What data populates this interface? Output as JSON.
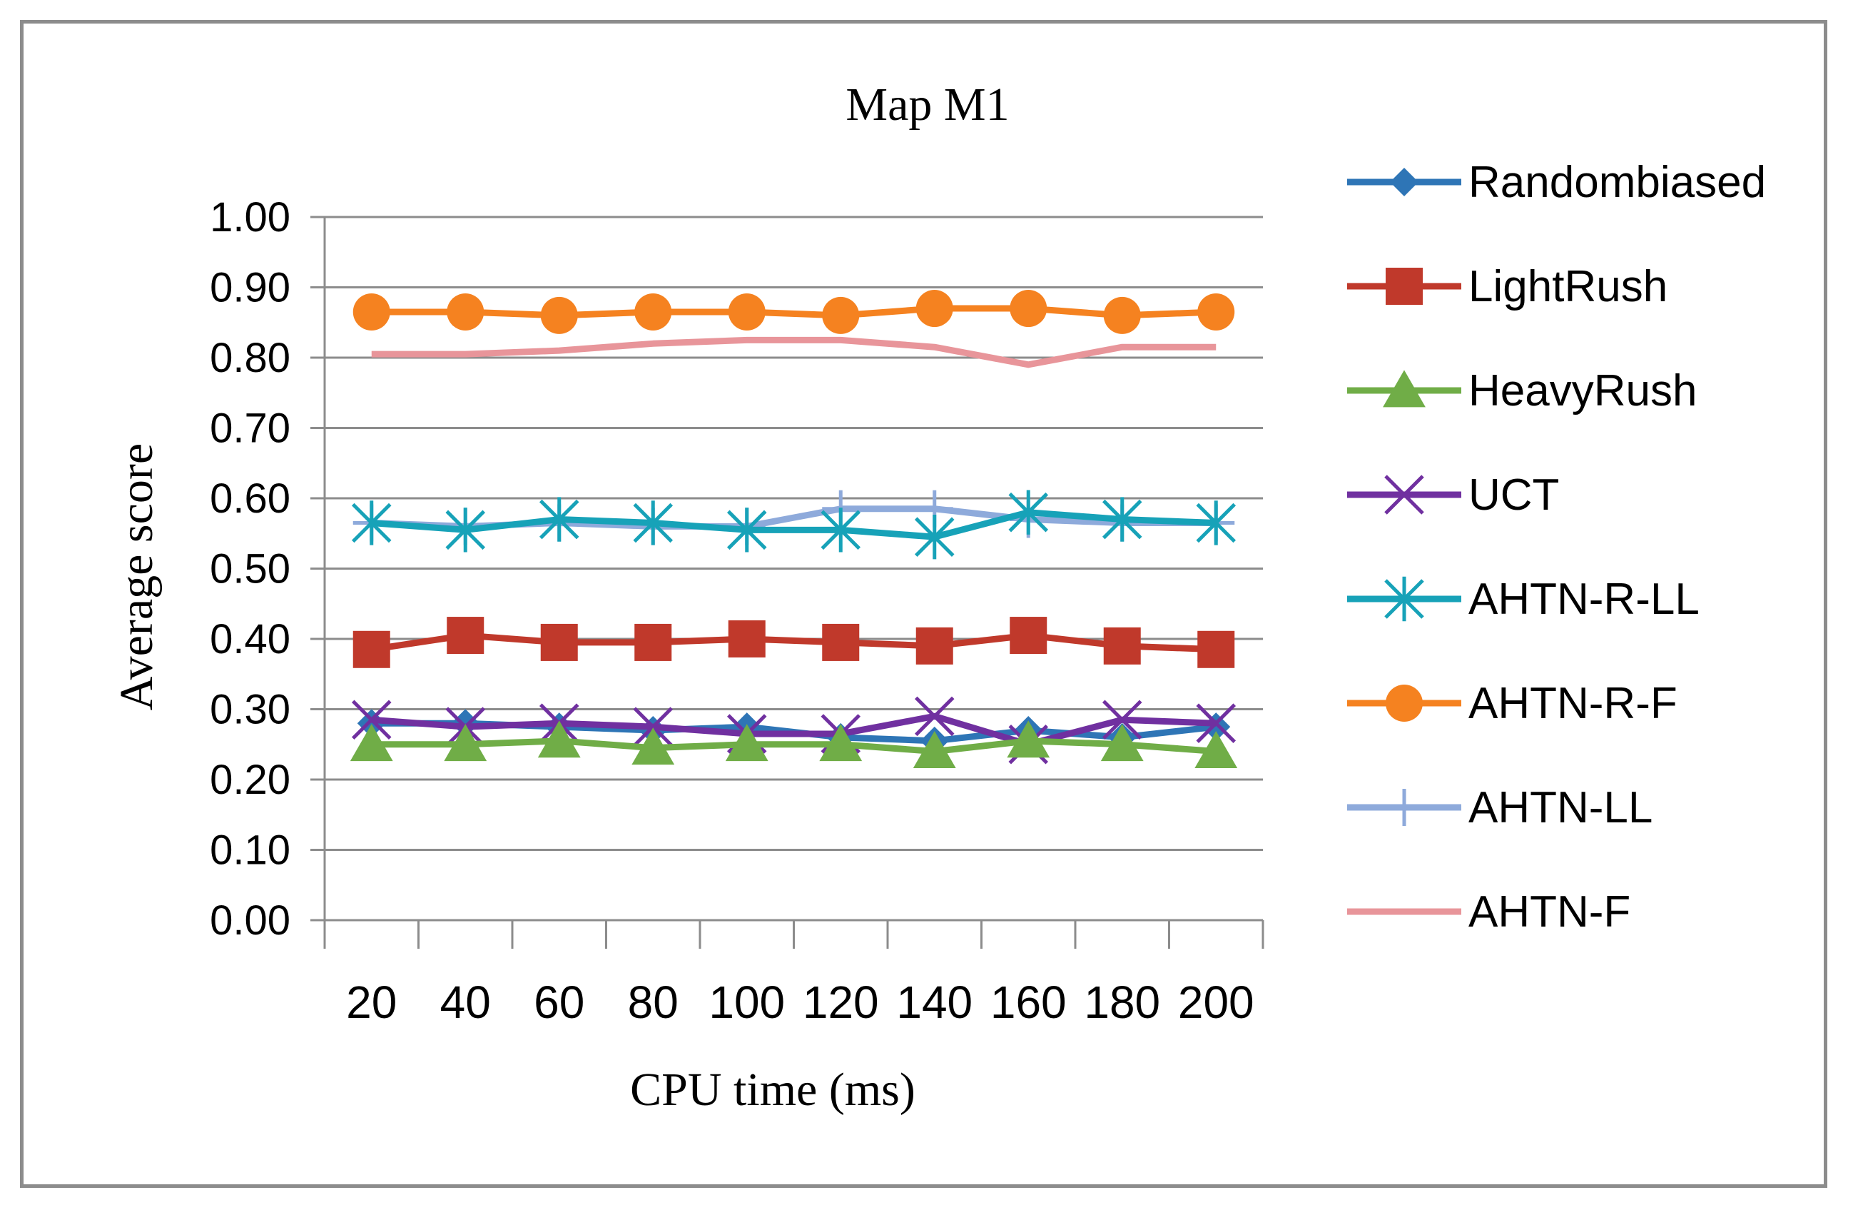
{
  "chart_data": {
    "type": "line",
    "title": "Map M1",
    "xlabel": "CPU time (ms)",
    "ylabel": "Average score",
    "categories": [
      "20",
      "40",
      "60",
      "80",
      "100",
      "120",
      "140",
      "160",
      "180",
      "200"
    ],
    "ylim": [
      0,
      1
    ],
    "yticks": [
      "0.00",
      "0.10",
      "0.20",
      "0.30",
      "0.40",
      "0.50",
      "0.60",
      "0.70",
      "0.80",
      "0.90",
      "1.00"
    ],
    "grid": true,
    "legend_position": "right",
    "series": [
      {
        "name": "Randombiased",
        "color": "#2e75b6",
        "marker": "diamond",
        "values": [
          0.28,
          0.28,
          0.275,
          0.27,
          0.275,
          0.26,
          0.255,
          0.27,
          0.26,
          0.275
        ]
      },
      {
        "name": "LightRush",
        "color": "#c0392b",
        "marker": "square",
        "values": [
          0.385,
          0.405,
          0.395,
          0.395,
          0.4,
          0.395,
          0.39,
          0.405,
          0.39,
          0.385
        ]
      },
      {
        "name": "HeavyRush",
        "color": "#70ad47",
        "marker": "triangle",
        "values": [
          0.25,
          0.25,
          0.255,
          0.245,
          0.25,
          0.25,
          0.24,
          0.255,
          0.25,
          0.24
        ]
      },
      {
        "name": "UCT",
        "color": "#7030a0",
        "marker": "x",
        "values": [
          0.285,
          0.275,
          0.28,
          0.275,
          0.265,
          0.265,
          0.29,
          0.25,
          0.285,
          0.28
        ]
      },
      {
        "name": "AHTN-R-LL",
        "color": "#17a2b8",
        "marker": "asterisk",
        "values": [
          0.565,
          0.555,
          0.57,
          0.565,
          0.555,
          0.555,
          0.545,
          0.58,
          0.57,
          0.565
        ]
      },
      {
        "name": "AHTN-R-F",
        "color": "#f58220",
        "marker": "circle",
        "values": [
          0.865,
          0.865,
          0.86,
          0.865,
          0.865,
          0.86,
          0.87,
          0.87,
          0.86,
          0.865
        ]
      },
      {
        "name": "AHTN-LL",
        "color": "#8eaadb",
        "marker": "plus",
        "values": [
          0.565,
          0.56,
          0.565,
          0.56,
          0.56,
          0.585,
          0.585,
          0.57,
          0.565,
          0.565
        ]
      },
      {
        "name": "AHTN-F",
        "color": "#e8959a",
        "marker": "none",
        "values": [
          0.805,
          0.805,
          0.81,
          0.82,
          0.825,
          0.825,
          0.815,
          0.79,
          0.815,
          0.815
        ]
      }
    ]
  }
}
